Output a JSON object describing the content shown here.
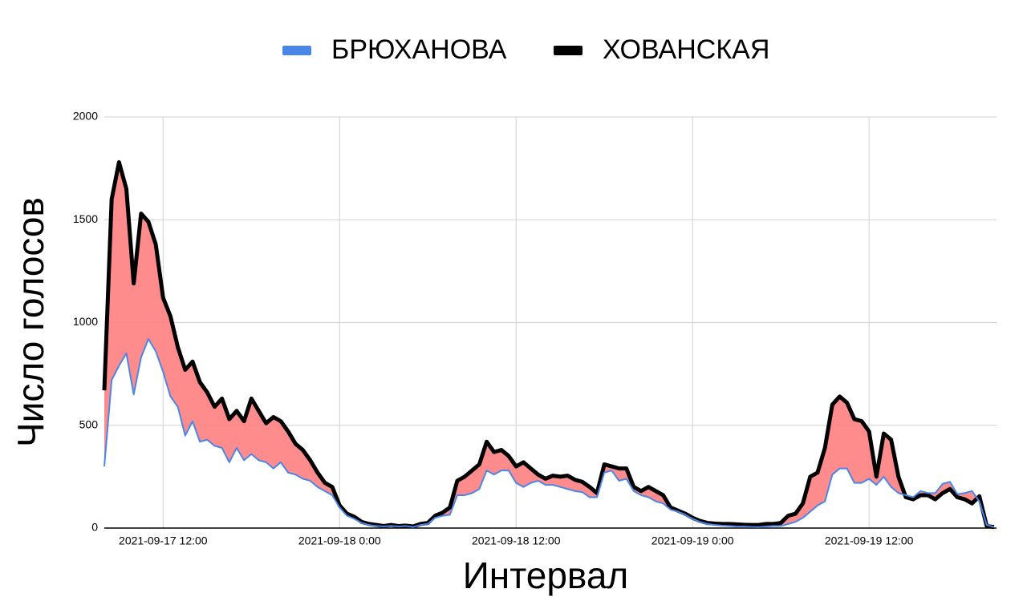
{
  "chart_data": {
    "type": "line",
    "x_label": "Интервал",
    "y_label": "Число голосов",
    "x": [
      "2021-09-17 08:00",
      "2021-09-17 08:30",
      "2021-09-17 09:00",
      "2021-09-17 09:30",
      "2021-09-17 10:00",
      "2021-09-17 10:30",
      "2021-09-17 11:00",
      "2021-09-17 11:30",
      "2021-09-17 12:00",
      "2021-09-17 12:30",
      "2021-09-17 13:00",
      "2021-09-17 13:30",
      "2021-09-17 14:00",
      "2021-09-17 14:30",
      "2021-09-17 15:00",
      "2021-09-17 15:30",
      "2021-09-17 16:00",
      "2021-09-17 16:30",
      "2021-09-17 17:00",
      "2021-09-17 17:30",
      "2021-09-17 18:00",
      "2021-09-17 18:30",
      "2021-09-17 19:00",
      "2021-09-17 19:30",
      "2021-09-17 20:00",
      "2021-09-17 20:30",
      "2021-09-17 21:00",
      "2021-09-17 21:30",
      "2021-09-17 22:00",
      "2021-09-17 22:30",
      "2021-09-17 23:00",
      "2021-09-17 23:30",
      "2021-09-18 00:00",
      "2021-09-18 00:30",
      "2021-09-18 01:00",
      "2021-09-18 01:30",
      "2021-09-18 02:00",
      "2021-09-18 02:30",
      "2021-09-18 03:00",
      "2021-09-18 03:30",
      "2021-09-18 04:00",
      "2021-09-18 04:30",
      "2021-09-18 05:00",
      "2021-09-18 05:30",
      "2021-09-18 06:00",
      "2021-09-18 06:30",
      "2021-09-18 07:00",
      "2021-09-18 07:30",
      "2021-09-18 08:00",
      "2021-09-18 08:30",
      "2021-09-18 09:00",
      "2021-09-18 09:30",
      "2021-09-18 10:00",
      "2021-09-18 10:30",
      "2021-09-18 11:00",
      "2021-09-18 11:30",
      "2021-09-18 12:00",
      "2021-09-18 12:30",
      "2021-09-18 13:00",
      "2021-09-18 13:30",
      "2021-09-18 14:00",
      "2021-09-18 14:30",
      "2021-09-18 15:00",
      "2021-09-18 15:30",
      "2021-09-18 16:00",
      "2021-09-18 16:30",
      "2021-09-18 17:00",
      "2021-09-18 17:30",
      "2021-09-18 18:00",
      "2021-09-18 18:30",
      "2021-09-18 19:00",
      "2021-09-18 19:30",
      "2021-09-18 20:00",
      "2021-09-18 20:30",
      "2021-09-18 21:00",
      "2021-09-18 21:30",
      "2021-09-18 22:00",
      "2021-09-18 22:30",
      "2021-09-18 23:00",
      "2021-09-18 23:30",
      "2021-09-19 00:00",
      "2021-09-19 00:30",
      "2021-09-19 01:00",
      "2021-09-19 01:30",
      "2021-09-19 02:00",
      "2021-09-19 02:30",
      "2021-09-19 03:00",
      "2021-09-19 03:30",
      "2021-09-19 04:00",
      "2021-09-19 04:30",
      "2021-09-19 05:00",
      "2021-09-19 05:30",
      "2021-09-19 06:00",
      "2021-09-19 06:30",
      "2021-09-19 07:00",
      "2021-09-19 07:30",
      "2021-09-19 08:00",
      "2021-09-19 08:30",
      "2021-09-19 09:00",
      "2021-09-19 09:30",
      "2021-09-19 10:00",
      "2021-09-19 10:30",
      "2021-09-19 11:00",
      "2021-09-19 11:30",
      "2021-09-19 12:00",
      "2021-09-19 12:30",
      "2021-09-19 13:00",
      "2021-09-19 13:30",
      "2021-09-19 14:00",
      "2021-09-19 14:30",
      "2021-09-19 15:00",
      "2021-09-19 15:30",
      "2021-09-19 16:00",
      "2021-09-19 16:30",
      "2021-09-19 17:00",
      "2021-09-19 17:30",
      "2021-09-19 18:00",
      "2021-09-19 18:30",
      "2021-09-19 19:00",
      "2021-09-19 19:30",
      "2021-09-19 20:00",
      "2021-09-19 20:30"
    ],
    "series": [
      {
        "name": "БРЮХАНОВА",
        "color": "#4a86e8",
        "values": [
          300,
          720,
          790,
          850,
          650,
          830,
          920,
          860,
          760,
          640,
          590,
          450,
          520,
          420,
          430,
          400,
          390,
          320,
          390,
          330,
          360,
          330,
          320,
          290,
          320,
          270,
          260,
          240,
          230,
          200,
          180,
          160,
          100,
          60,
          45,
          25,
          15,
          10,
          8,
          10,
          8,
          10,
          5,
          15,
          20,
          50,
          60,
          65,
          160,
          160,
          170,
          190,
          280,
          260,
          280,
          280,
          220,
          200,
          220,
          230,
          210,
          210,
          200,
          190,
          180,
          175,
          150,
          150,
          270,
          280,
          230,
          240,
          180,
          160,
          150,
          130,
          120,
          90,
          80,
          65,
          45,
          30,
          20,
          15,
          12,
          10,
          8,
          8,
          6,
          5,
          8,
          10,
          10,
          20,
          30,
          50,
          80,
          110,
          130,
          260,
          290,
          290,
          220,
          220,
          240,
          210,
          250,
          200,
          170,
          160,
          150,
          180,
          170,
          170,
          215,
          225,
          165,
          170,
          180,
          130,
          15,
          5
        ]
      },
      {
        "name": "ХОВАНСКАЯ",
        "color": "#000000",
        "values": [
          670,
          1600,
          1780,
          1650,
          1190,
          1530,
          1490,
          1380,
          1120,
          1030,
          880,
          770,
          810,
          710,
          660,
          590,
          630,
          530,
          570,
          520,
          630,
          570,
          510,
          540,
          520,
          470,
          410,
          380,
          330,
          270,
          220,
          200,
          110,
          70,
          55,
          30,
          20,
          15,
          10,
          15,
          10,
          12,
          8,
          20,
          25,
          60,
          75,
          100,
          230,
          250,
          280,
          310,
          420,
          370,
          380,
          350,
          300,
          320,
          290,
          260,
          240,
          255,
          250,
          255,
          235,
          225,
          200,
          170,
          310,
          300,
          290,
          290,
          200,
          180,
          200,
          180,
          160,
          100,
          85,
          70,
          50,
          35,
          25,
          22,
          20,
          20,
          18,
          16,
          15,
          15,
          20,
          20,
          25,
          60,
          70,
          120,
          250,
          270,
          390,
          600,
          640,
          610,
          530,
          520,
          470,
          250,
          460,
          430,
          250,
          150,
          140,
          160,
          160,
          140,
          170,
          190,
          150,
          140,
          120,
          155,
          10,
          5
        ]
      }
    ],
    "fill_color": "#ff8080",
    "xlim": [
      "2021-09-17 08:00",
      "2021-09-19 20:40"
    ],
    "xticks": [
      "2021-09-17 12:00",
      {
        "value": "2021-09-18 00:00",
        "label": "2021-09-18 0:00"
      },
      "2021-09-18 12:00",
      {
        "value": "2021-09-19 00:00",
        "label": "2021-09-19 0:00"
      },
      "2021-09-19 12:00"
    ],
    "ylim": [
      0,
      2000
    ],
    "yticks": [
      0,
      500,
      1000,
      1500,
      2000
    ],
    "grid": true,
    "legend": "top"
  }
}
